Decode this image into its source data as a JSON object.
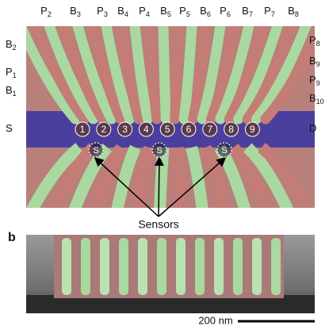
{
  "panel_a": {
    "top_labels": [
      {
        "base": "P",
        "sub": "2"
      },
      {
        "base": "B",
        "sub": "3"
      },
      {
        "base": "P",
        "sub": "3"
      },
      {
        "base": "B",
        "sub": "4"
      },
      {
        "base": "P",
        "sub": "4"
      },
      {
        "base": "B",
        "sub": "5"
      },
      {
        "base": "P",
        "sub": "5"
      },
      {
        "base": "B",
        "sub": "6"
      },
      {
        "base": "P",
        "sub": "6"
      },
      {
        "base": "B",
        "sub": "7"
      },
      {
        "base": "P",
        "sub": "7"
      },
      {
        "base": "B",
        "sub": "8"
      }
    ],
    "left_labels": [
      {
        "base": "B",
        "sub": "2"
      },
      {
        "base": "P",
        "sub": "1"
      },
      {
        "base": "B",
        "sub": "1"
      },
      {
        "base": "S",
        "sub": ""
      }
    ],
    "right_labels": [
      {
        "base": "P",
        "sub": "8"
      },
      {
        "base": "B",
        "sub": "9"
      },
      {
        "base": "P",
        "sub": "9"
      },
      {
        "base": "B",
        "sub": "10"
      },
      {
        "base": "D",
        "sub": ""
      }
    ],
    "dots": [
      "1",
      "2",
      "3",
      "4",
      "5",
      "6",
      "7",
      "8",
      "9"
    ],
    "sensor_marks": [
      "S",
      "S",
      "S"
    ],
    "sensors_label": "Sensors"
  },
  "panel_b": {
    "label": "b",
    "scale_bar": "200 nm"
  }
}
